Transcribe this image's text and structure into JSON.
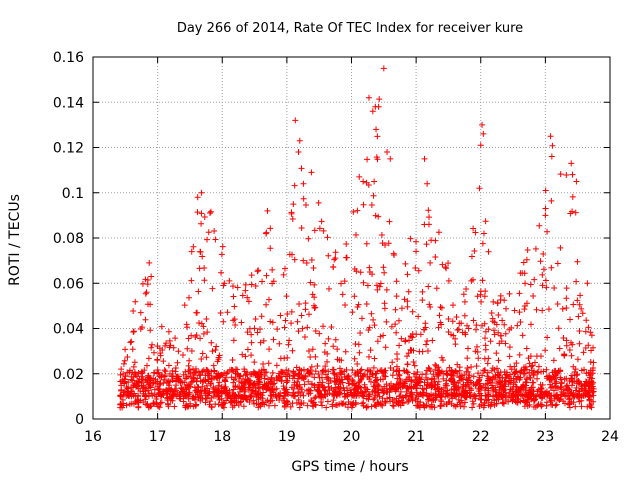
{
  "chart_data": {
    "type": "scatter",
    "title": "Day 266 of 2014, Rate Of TEC Index for receiver kure",
    "xlabel": "GPS time / hours",
    "ylabel": "ROTI / TECUs",
    "xlim": [
      16,
      24
    ],
    "ylim": [
      0,
      0.16
    ],
    "grid": true,
    "marker": "+",
    "color": "#ff0000",
    "x_ticks": [
      "16",
      "17",
      "18",
      "19",
      "20",
      "21",
      "22",
      "23",
      "24"
    ],
    "x_tick_values": [
      16,
      17,
      18,
      19,
      20,
      21,
      22,
      23,
      24
    ],
    "y_ticks": [
      "0",
      "0.02",
      "0.04",
      "0.06",
      "0.08",
      "0.1",
      "0.12",
      "0.14",
      "0.16"
    ],
    "y_tick_values": [
      0,
      0.02,
      0.04,
      0.06,
      0.08,
      0.1,
      0.12,
      0.14,
      0.16
    ],
    "x_start": 16.42,
    "x_end": 23.75,
    "envelope": [
      {
        "x": 16.42,
        "y": 0.02
      },
      {
        "x": 16.6,
        "y": 0.047
      },
      {
        "x": 16.85,
        "y": 0.07
      },
      {
        "x": 17.1,
        "y": 0.04
      },
      {
        "x": 17.35,
        "y": 0.045
      },
      {
        "x": 17.55,
        "y": 0.095
      },
      {
        "x": 17.7,
        "y": 0.1
      },
      {
        "x": 17.95,
        "y": 0.095
      },
      {
        "x": 18.2,
        "y": 0.06
      },
      {
        "x": 18.4,
        "y": 0.06
      },
      {
        "x": 18.7,
        "y": 0.09
      },
      {
        "x": 19.0,
        "y": 0.07
      },
      {
        "x": 19.15,
        "y": 0.13
      },
      {
        "x": 19.35,
        "y": 0.11
      },
      {
        "x": 19.6,
        "y": 0.09
      },
      {
        "x": 19.85,
        "y": 0.07
      },
      {
        "x": 20.1,
        "y": 0.107
      },
      {
        "x": 20.3,
        "y": 0.143
      },
      {
        "x": 20.5,
        "y": 0.155
      },
      {
        "x": 20.7,
        "y": 0.06
      },
      {
        "x": 21.0,
        "y": 0.09
      },
      {
        "x": 21.2,
        "y": 0.115
      },
      {
        "x": 21.45,
        "y": 0.08
      },
      {
        "x": 21.7,
        "y": 0.05
      },
      {
        "x": 22.0,
        "y": 0.13
      },
      {
        "x": 22.2,
        "y": 0.05
      },
      {
        "x": 22.45,
        "y": 0.06
      },
      {
        "x": 22.7,
        "y": 0.075
      },
      {
        "x": 22.95,
        "y": 0.09
      },
      {
        "x": 23.1,
        "y": 0.125
      },
      {
        "x": 23.4,
        "y": 0.113
      },
      {
        "x": 23.6,
        "y": 0.06
      },
      {
        "x": 23.75,
        "y": 0.04
      }
    ],
    "outliers": [
      {
        "x": 16.87,
        "y": 0.069
      },
      {
        "x": 16.9,
        "y": 0.063
      },
      {
        "x": 17.62,
        "y": 0.098
      },
      {
        "x": 17.68,
        "y": 0.1
      },
      {
        "x": 18.7,
        "y": 0.092
      },
      {
        "x": 19.13,
        "y": 0.132
      },
      {
        "x": 19.2,
        "y": 0.123
      },
      {
        "x": 19.18,
        "y": 0.118
      },
      {
        "x": 19.38,
        "y": 0.109
      },
      {
        "x": 19.1,
        "y": 0.095
      },
      {
        "x": 20.27,
        "y": 0.142
      },
      {
        "x": 20.33,
        "y": 0.136
      },
      {
        "x": 20.42,
        "y": 0.138
      },
      {
        "x": 20.38,
        "y": 0.128
      },
      {
        "x": 20.5,
        "y": 0.155
      },
      {
        "x": 20.55,
        "y": 0.118
      },
      {
        "x": 20.6,
        "y": 0.115
      },
      {
        "x": 20.35,
        "y": 0.105
      },
      {
        "x": 20.12,
        "y": 0.107
      },
      {
        "x": 20.18,
        "y": 0.105
      },
      {
        "x": 21.13,
        "y": 0.115
      },
      {
        "x": 21.17,
        "y": 0.104
      },
      {
        "x": 22.02,
        "y": 0.13
      },
      {
        "x": 22.0,
        "y": 0.121
      },
      {
        "x": 22.04,
        "y": 0.126
      },
      {
        "x": 21.98,
        "y": 0.102
      },
      {
        "x": 22.05,
        "y": 0.082
      },
      {
        "x": 23.08,
        "y": 0.125
      },
      {
        "x": 23.1,
        "y": 0.116
      },
      {
        "x": 23.4,
        "y": 0.113
      },
      {
        "x": 23.42,
        "y": 0.108
      },
      {
        "x": 23.48,
        "y": 0.105
      },
      {
        "x": 23.0,
        "y": 0.09
      },
      {
        "x": 23.65,
        "y": 0.06
      },
      {
        "x": 23.72,
        "y": 0.037
      }
    ]
  }
}
